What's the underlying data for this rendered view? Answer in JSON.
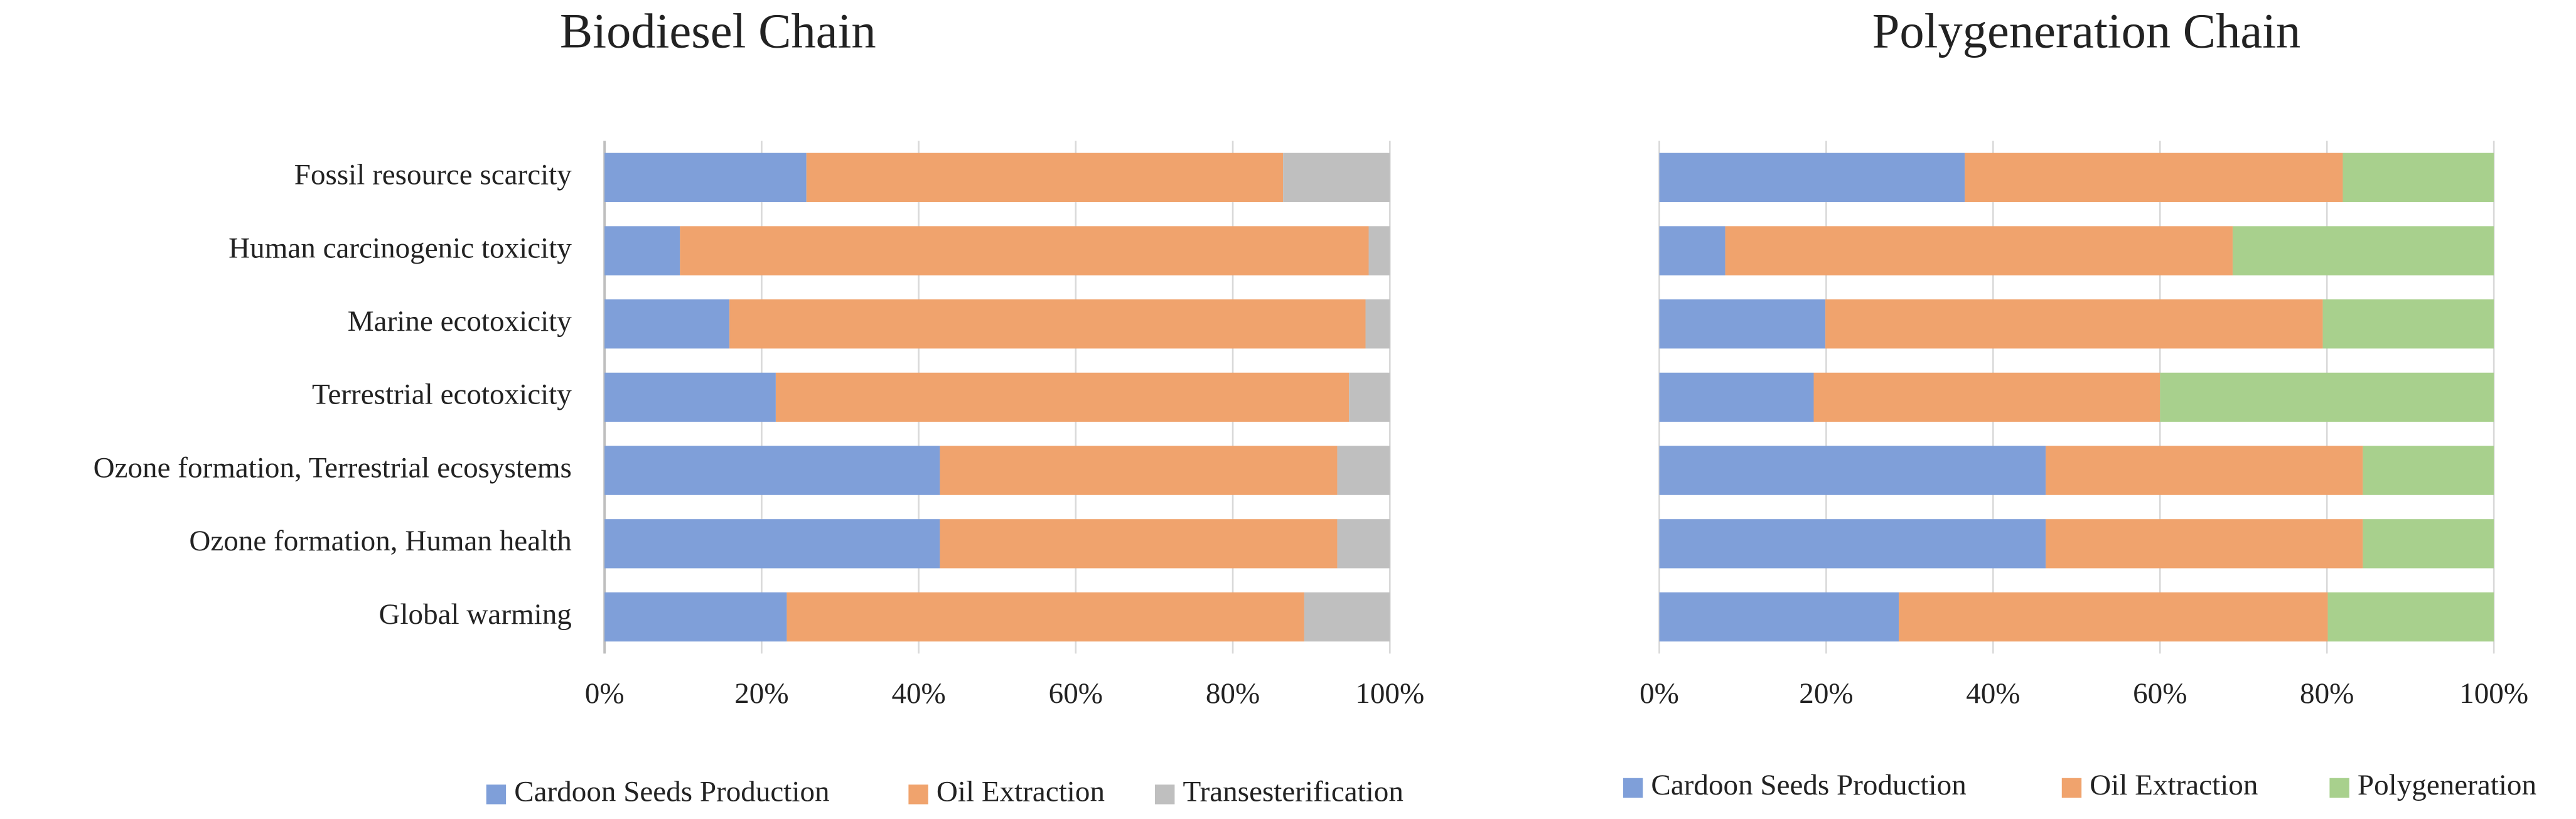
{
  "chart_data": [
    {
      "type": "stacked-bar-horizontal",
      "title": "Biodiesel Chain",
      "categories": [
        "Fossil resource scarcity",
        "Human carcinogenic toxicity",
        "Marine ecotoxicity",
        "Terrestrial ecotoxicity",
        "Ozone formation, Terrestrial ecosystems",
        "Ozone formation, Human health",
        "Global warming"
      ],
      "series": [
        {
          "name": "Cardoon Seeds Production",
          "color": "#7f9fd9",
          "values": [
            25.7,
            9.6,
            15.9,
            21.8,
            42.7,
            42.7,
            23.2
          ]
        },
        {
          "name": "Oil Extraction",
          "color": "#f0a36d",
          "values": [
            60.7,
            87.7,
            81.0,
            73.0,
            50.6,
            50.6,
            65.9
          ]
        },
        {
          "name": "Transesterification",
          "color": "#bfbfbf",
          "values": [
            13.6,
            2.7,
            3.1,
            5.2,
            6.7,
            6.7,
            10.9
          ]
        }
      ],
      "xlim": [
        0,
        100
      ],
      "xticks": [
        {
          "value": 0,
          "label": "0%"
        },
        {
          "value": 20,
          "label": "20%"
        },
        {
          "value": 40,
          "label": "40%"
        },
        {
          "value": 60,
          "label": "60%"
        },
        {
          "value": 80,
          "label": "80%"
        },
        {
          "value": 100,
          "label": "100%"
        }
      ],
      "grid": true,
      "legend": "bottom"
    },
    {
      "type": "stacked-bar-horizontal",
      "title": "Polygeneration Chain",
      "categories": [
        null,
        null,
        null,
        null,
        null,
        null,
        null
      ],
      "series": [
        {
          "name": "Cardoon Seeds Production",
          "color": "#7f9fd9",
          "values": [
            36.6,
            7.9,
            19.9,
            18.5,
            46.3,
            46.3,
            28.7
          ]
        },
        {
          "name": "Oil Extraction",
          "color": "#f0a36d",
          "values": [
            45.3,
            60.8,
            59.6,
            41.5,
            38.0,
            38.0,
            51.4
          ]
        },
        {
          "name": "Polygeneration",
          "color": "#a8d08d",
          "values": [
            18.1,
            31.3,
            20.5,
            40.0,
            15.7,
            15.7,
            19.9
          ]
        }
      ],
      "xlim": [
        0,
        100
      ],
      "xticks": [
        {
          "value": 0,
          "label": "0%"
        },
        {
          "value": 20,
          "label": "20%"
        },
        {
          "value": 40,
          "label": "40%"
        },
        {
          "value": 60,
          "label": "60%"
        },
        {
          "value": 80,
          "label": "80%"
        },
        {
          "value": 100,
          "label": "100%"
        }
      ],
      "grid": true,
      "legend": "bottom"
    }
  ]
}
